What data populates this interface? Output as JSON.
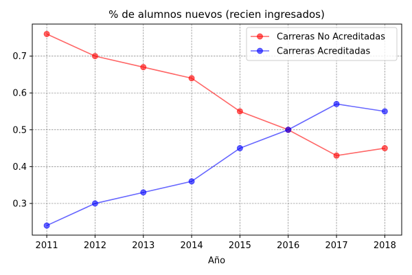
{
  "chart_data": {
    "type": "line",
    "title": "% de alumnos nuevos (recien ingresados)",
    "xlabel": "Año",
    "ylabel": "",
    "x": [
      2011,
      2012,
      2013,
      2014,
      2015,
      2016,
      2017,
      2018
    ],
    "xlim": [
      2010.7,
      2018.35
    ],
    "ylim": [
      0.214,
      0.787
    ],
    "yticks": [
      0.3,
      0.4,
      0.5,
      0.6,
      0.7
    ],
    "ytick_labels": [
      "0.3",
      "0.4",
      "0.5",
      "0.6",
      "0.7"
    ],
    "grid": true,
    "legend_position": "top-right",
    "series": [
      {
        "name": "Carreras No Acreditadas",
        "color": "#ff0000",
        "values": [
          0.76,
          0.7,
          0.67,
          0.64,
          0.55,
          0.5,
          0.43,
          0.45
        ]
      },
      {
        "name": "Carreras Acreditadas",
        "color": "#0000ff",
        "values": [
          0.24,
          0.3,
          0.33,
          0.36,
          0.45,
          0.5,
          0.57,
          0.55
        ]
      }
    ]
  }
}
